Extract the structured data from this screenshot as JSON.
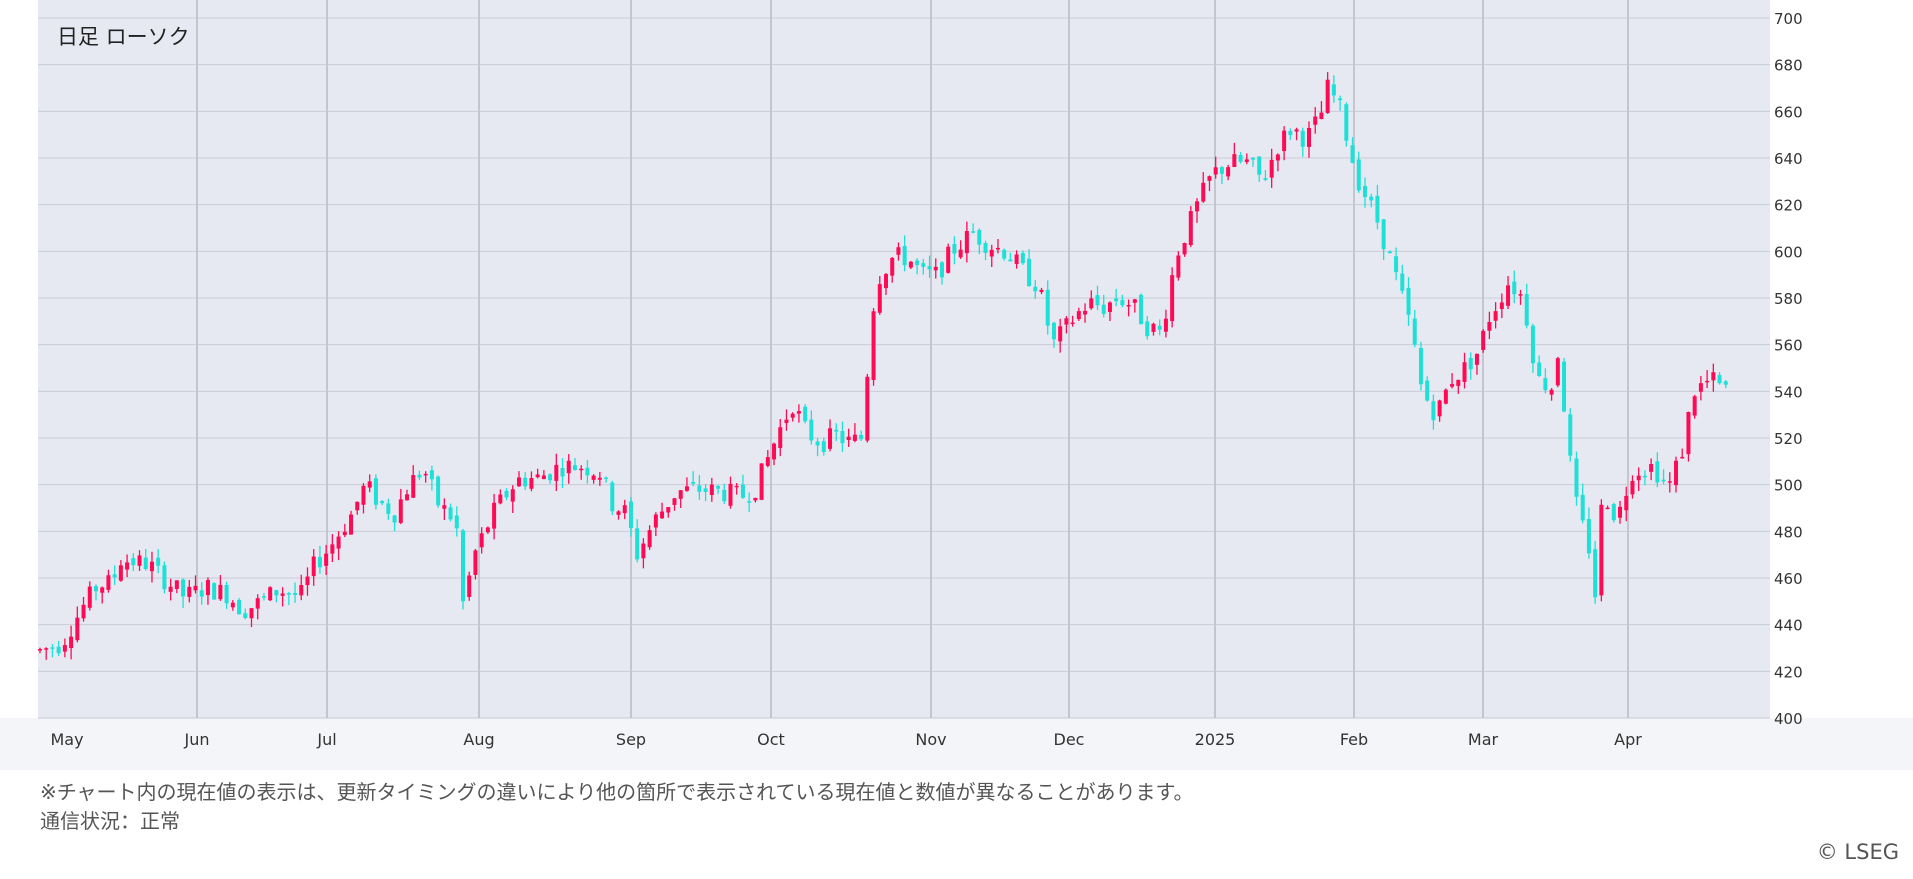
{
  "chart_data": {
    "type": "candlestick",
    "title": "日足 ローソク",
    "y_ticks": [
      400,
      420,
      440,
      460,
      480,
      500,
      520,
      540,
      560,
      580,
      600,
      620,
      640,
      660,
      680,
      700
    ],
    "ylim": [
      400,
      700
    ],
    "x_ticks": [
      "May",
      "Jun",
      "Jul",
      "Aug",
      "Sep",
      "Oct",
      "Nov",
      "Dec",
      "2025",
      "Feb",
      "Mar",
      "Apr"
    ],
    "grid": true,
    "up_color": "#ff0a54",
    "down_color": "#1ee0d6",
    "series_points": [
      [
        0.0,
        429
      ],
      [
        0.3,
        432
      ],
      [
        0.6,
        448
      ],
      [
        0.8,
        457
      ],
      [
        1.0,
        458
      ],
      [
        1.1,
        468
      ],
      [
        1.5,
        466
      ],
      [
        1.7,
        460
      ],
      [
        2.0,
        452
      ],
      [
        2.3,
        456
      ],
      [
        2.6,
        453
      ],
      [
        2.8,
        446
      ],
      [
        3.0,
        449
      ],
      [
        3.3,
        455
      ],
      [
        3.6,
        452
      ],
      [
        3.8,
        466
      ],
      [
        4.0,
        473
      ],
      [
        4.3,
        487
      ],
      [
        4.5,
        500
      ],
      [
        4.7,
        492
      ],
      [
        4.9,
        488
      ],
      [
        5.1,
        500
      ],
      [
        5.3,
        507
      ],
      [
        5.5,
        492
      ],
      [
        5.75,
        484
      ],
      [
        5.85,
        448
      ],
      [
        6.0,
        470
      ],
      [
        6.3,
        490
      ],
      [
        6.6,
        502
      ],
      [
        6.9,
        503
      ],
      [
        7.2,
        508
      ],
      [
        7.5,
        508
      ],
      [
        7.75,
        505
      ],
      [
        7.9,
        492
      ],
      [
        8.1,
        488
      ],
      [
        8.25,
        470
      ],
      [
        8.5,
        485
      ],
      [
        8.8,
        497
      ],
      [
        9.1,
        498
      ],
      [
        9.4,
        497
      ],
      [
        9.7,
        495
      ],
      [
        9.9,
        499
      ],
      [
        10.2,
        522
      ],
      [
        10.4,
        535
      ],
      [
        10.6,
        522
      ],
      [
        10.8,
        518
      ],
      [
        11.0,
        521
      ],
      [
        11.2,
        518
      ],
      [
        11.35,
        520
      ],
      [
        11.55,
        587
      ],
      [
        11.8,
        598
      ],
      [
        12.0,
        597
      ],
      [
        12.2,
        590
      ],
      [
        12.4,
        590
      ],
      [
        12.6,
        600
      ],
      [
        12.9,
        608
      ],
      [
        13.1,
        603
      ],
      [
        13.35,
        600
      ],
      [
        13.6,
        591
      ],
      [
        13.8,
        585
      ],
      [
        14.0,
        560
      ],
      [
        14.3,
        572
      ],
      [
        14.5,
        578
      ],
      [
        14.7,
        576
      ],
      [
        14.9,
        580
      ],
      [
        15.1,
        577
      ],
      [
        15.3,
        568
      ],
      [
        15.5,
        565
      ],
      [
        15.7,
        598
      ],
      [
        16.0,
        620
      ],
      [
        16.2,
        633
      ],
      [
        16.45,
        638
      ],
      [
        16.7,
        638
      ],
      [
        16.9,
        630
      ],
      [
        17.1,
        645
      ],
      [
        17.3,
        653
      ],
      [
        17.5,
        648
      ],
      [
        17.7,
        658
      ],
      [
        17.8,
        670
      ],
      [
        17.95,
        663
      ],
      [
        18.2,
        632
      ],
      [
        18.5,
        612
      ],
      [
        18.75,
        588
      ],
      [
        18.95,
        567
      ],
      [
        19.1,
        540
      ],
      [
        19.3,
        530
      ],
      [
        19.5,
        545
      ],
      [
        19.7,
        550
      ],
      [
        19.9,
        558
      ],
      [
        20.0,
        570
      ],
      [
        20.3,
        587
      ],
      [
        20.5,
        580
      ],
      [
        20.7,
        545
      ],
      [
        20.9,
        542
      ],
      [
        21.0,
        560
      ],
      [
        21.1,
        520
      ],
      [
        21.25,
        488
      ],
      [
        21.4,
        475
      ],
      [
        21.5,
        452
      ],
      [
        21.6,
        498
      ],
      [
        21.8,
        485
      ],
      [
        22.0,
        506
      ],
      [
        22.3,
        508
      ],
      [
        22.5,
        498
      ],
      [
        22.7,
        515
      ],
      [
        22.85,
        540
      ],
      [
        23.1,
        545
      ],
      [
        23.3,
        540
      ]
    ],
    "x_span": 23.3
  },
  "notes": {
    "line1": "※チャート内の現在値の表示は、更新タイミングの違いにより他の箇所で表示されている現在値と数値が異なることがあります。",
    "line2": "通信状況：正常"
  },
  "copyright": "© LSEG"
}
